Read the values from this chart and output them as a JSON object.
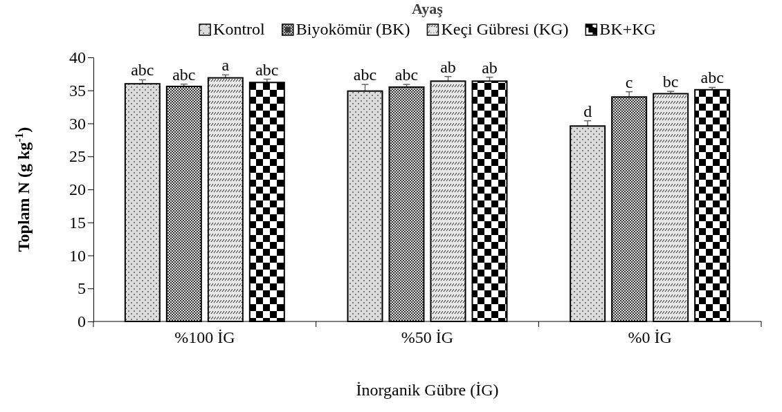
{
  "chart_data": {
    "type": "bar",
    "title": "Ayaş",
    "xlabel": "İnorganik Gübre (İG)",
    "ylabel": "Toplam N (g kg$^{-1}$)",
    "categories": [
      "%100 İG",
      "%50 İG",
      "%0 İG"
    ],
    "series": [
      {
        "name": "Kontrol",
        "color": "#dcdcdc",
        "values": [
          36.0,
          34.9,
          29.6
        ],
        "errors": [
          0.6,
          1.0,
          0.8
        ],
        "value_labels": [
          "abc",
          "abc",
          "d"
        ]
      },
      {
        "name": "Biyokömür (BK)",
        "color": "#3a3a3a",
        "values": [
          35.6,
          35.5,
          34.0
        ],
        "errors": [
          0.35,
          0.4,
          0.8
        ],
        "value_labels": [
          "abc",
          "abc",
          "c"
        ]
      },
      {
        "name": "Keçi Gübresi (KG)",
        "color": "#e8e8e8",
        "values": [
          36.9,
          36.4,
          34.5
        ],
        "errors": [
          0.45,
          0.7,
          0.35
        ],
        "value_labels": [
          "a",
          "ab",
          "bc"
        ]
      },
      {
        "name": "BK+KG",
        "color": "#000000",
        "values": [
          36.2,
          36.4,
          35.1
        ],
        "errors": [
          0.5,
          0.6,
          0.35
        ],
        "value_labels": [
          "abc",
          "ab",
          "abc"
        ]
      }
    ],
    "ylim": [
      0,
      40
    ],
    "yticks": [
      0,
      5,
      10,
      15,
      20,
      25,
      30,
      35,
      40
    ],
    "grid": false,
    "legend": "top"
  }
}
